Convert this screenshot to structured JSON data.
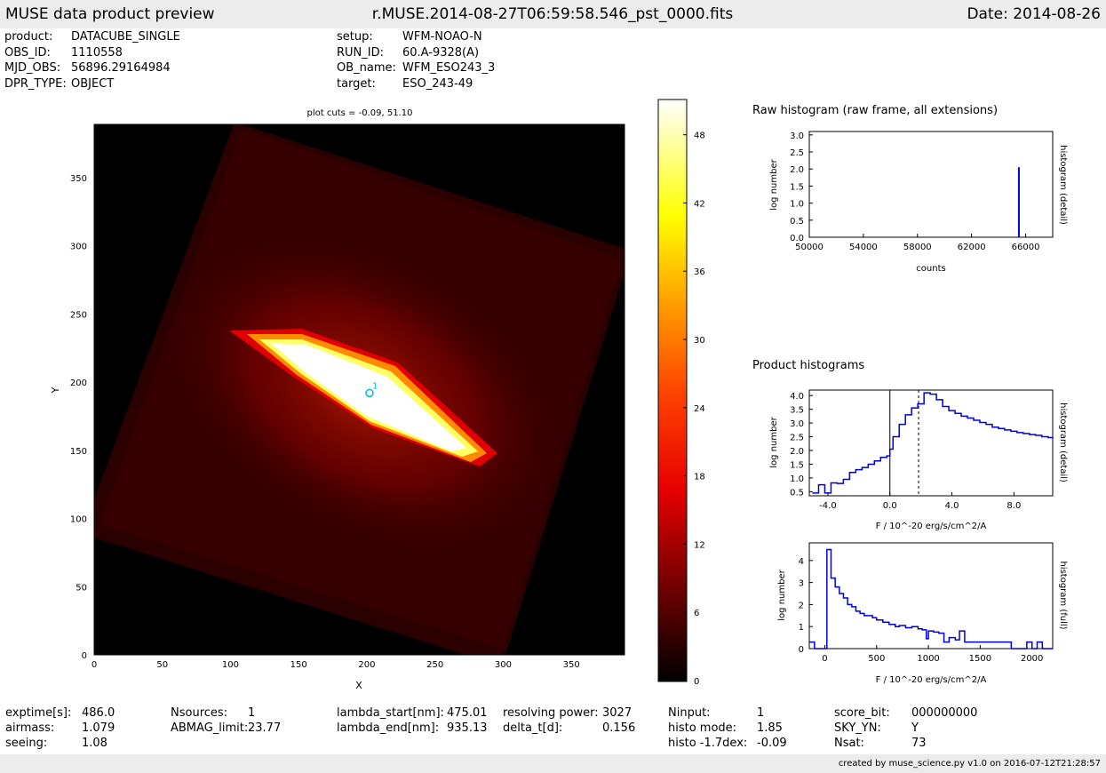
{
  "header": {
    "left": "MUSE data product preview",
    "center": "r.MUSE.2014-08-27T06:59:58.546_pst_0000.fits",
    "right": "Date: 2014-08-26"
  },
  "info": {
    "col1": [
      {
        "key": "product:",
        "val": "DATACUBE_SINGLE"
      },
      {
        "key": "OBS_ID:",
        "val": "1110558"
      },
      {
        "key": "MJD_OBS:",
        "val": "56896.29164984"
      },
      {
        "key": "DPR_TYPE:",
        "val": "OBJECT"
      }
    ],
    "col2": [
      {
        "key": "setup:",
        "val": "WFM-NOAO-N"
      },
      {
        "key": "RUN_ID:",
        "val": "60.A-9328(A)"
      },
      {
        "key": "OB_name:",
        "val": "WFM_ESO243_3"
      },
      {
        "key": "target:",
        "val": "ESO_243-49"
      }
    ]
  },
  "image_panel": {
    "title": "plot cuts = -0.09, 51.10",
    "xlabel": "X",
    "ylabel": "Y",
    "xticks": [
      "0",
      "50",
      "100",
      "150",
      "200",
      "250",
      "300",
      "350"
    ],
    "yticks": [
      "0",
      "50",
      "100",
      "150",
      "200",
      "250",
      "300",
      "350"
    ],
    "xlim": [
      0,
      389
    ],
    "ylim": [
      0,
      389
    ],
    "source_label": "1",
    "source_xy": [
      202,
      192
    ],
    "source_color": "#00bcd4",
    "colorbar_ticks": [
      "0",
      "6",
      "12",
      "18",
      "24",
      "30",
      "36",
      "42",
      "48"
    ],
    "colorbar_range": [
      -0.09,
      51.1
    ]
  },
  "raw_hist": {
    "title": "Raw histogram (raw frame, all extensions)",
    "xlabel": "counts",
    "ylabel": "log number",
    "right_label": "histogram (detail)",
    "xticks": [
      "50000",
      "54000",
      "58000",
      "62000",
      "66000"
    ],
    "yticks": [
      "0.0",
      "0.5",
      "1.0",
      "1.5",
      "2.0",
      "2.5",
      "3.0"
    ]
  },
  "product_title": "Product histograms",
  "detail_hist": {
    "xlabel": "F / 10^-20 erg/s/cm^2/A",
    "ylabel": "log number",
    "right_label": "histogram (detail)",
    "xticks": [
      "-4.0",
      "0.0",
      "4.0",
      "8.0"
    ],
    "yticks": [
      "0.5",
      "1.0",
      "1.5",
      "2.0",
      "2.5",
      "3.0",
      "3.5",
      "4.0"
    ]
  },
  "full_hist": {
    "xlabel": "F / 10^-20 erg/s/cm^2/A",
    "ylabel": "log number",
    "right_label": "histogram (full)",
    "xticks": [
      "0",
      "500",
      "1000",
      "1500",
      "2000"
    ],
    "yticks": [
      "0",
      "1",
      "2",
      "3",
      "4"
    ]
  },
  "stats": {
    "c1": [
      {
        "key": "exptime[s]:",
        "val": "486.0"
      },
      {
        "key": "airmass:",
        "val": "1.079"
      },
      {
        "key": "seeing:",
        "val": "1.08"
      }
    ],
    "c2": [
      {
        "key": "Nsources:",
        "val": "1"
      },
      {
        "key": "ABMAG_limit:",
        "val": "23.77"
      }
    ],
    "c3": [
      {
        "key": "lambda_start[nm]:",
        "val": "475.01"
      },
      {
        "key": "lambda_end[nm]:",
        "val": "935.13"
      }
    ],
    "c4": [
      {
        "key": "resolving power:",
        "val": "3027"
      },
      {
        "key": "delta_t[d]:",
        "val": "0.156"
      }
    ],
    "c5": [
      {
        "key": "Ninput:",
        "val": "1"
      },
      {
        "key": "histo mode:",
        "val": "1.85"
      },
      {
        "key": "histo -1.7dex:",
        "val": "-0.09"
      }
    ],
    "c6": [
      {
        "key": "score_bit:",
        "val": "000000000"
      },
      {
        "key": "SKY_YN:",
        "val": "Y"
      },
      {
        "key": "Nsat:",
        "val": "73"
      }
    ]
  },
  "footer": "created by muse_science.py v1.0 on 2016-07-12T21:28:57",
  "colors": {
    "hist_line": "#0000dd",
    "bar_bg": "#ececec"
  },
  "chart_data": [
    {
      "type": "heatmap",
      "title": "plot cuts = -0.09, 51.10",
      "xlabel": "X",
      "ylabel": "Y",
      "xlim": [
        0,
        389
      ],
      "ylim": [
        0,
        389
      ],
      "colorbar": {
        "min": -0.09,
        "max": 51.1,
        "ticks": [
          0,
          6,
          12,
          18,
          24,
          30,
          36,
          42,
          48
        ]
      },
      "colormap": "hot",
      "annotations": [
        {
          "label": "1",
          "x": 202,
          "y": 192
        }
      ]
    },
    {
      "type": "bar",
      "title": "Raw histogram (raw frame, all extensions)",
      "xlabel": "counts",
      "ylabel": "log number",
      "xlim": [
        50000,
        68000
      ],
      "ylim": [
        0,
        3.1
      ],
      "x": [
        65500
      ],
      "values": [
        2.05
      ]
    },
    {
      "type": "line",
      "xlabel": "F / 10^-20 erg/s/cm^2/A",
      "ylabel": "log number",
      "xlim": [
        -5.2,
        10.5
      ],
      "ylim": [
        0.35,
        4.2
      ],
      "vlines": [
        0.0,
        1.85
      ],
      "x": [
        -5.0,
        -4.6,
        -4.2,
        -3.8,
        -3.4,
        -3.0,
        -2.6,
        -2.2,
        -1.8,
        -1.4,
        -1.0,
        -0.6,
        -0.2,
        0.0,
        0.2,
        0.6,
        1.0,
        1.4,
        1.8,
        2.2,
        2.6,
        3.0,
        3.4,
        3.8,
        4.2,
        4.6,
        5.0,
        5.4,
        5.8,
        6.2,
        6.6,
        7.0,
        7.4,
        7.8,
        8.2,
        8.6,
        9.0,
        9.4,
        9.8,
        10.2
      ],
      "values": [
        0.45,
        0.75,
        0.45,
        0.82,
        0.8,
        0.95,
        1.2,
        1.3,
        1.38,
        1.5,
        1.62,
        1.75,
        1.8,
        2.05,
        2.5,
        2.95,
        3.3,
        3.55,
        3.7,
        4.1,
        4.05,
        3.85,
        3.6,
        3.45,
        3.35,
        3.25,
        3.18,
        3.1,
        3.02,
        2.95,
        2.85,
        2.8,
        2.75,
        2.7,
        2.65,
        2.62,
        2.58,
        2.55,
        2.5,
        2.47
      ]
    },
    {
      "type": "line",
      "xlabel": "F / 10^-20 erg/s/cm^2/A",
      "ylabel": "log number",
      "xlim": [
        -150,
        2200
      ],
      "ylim": [
        0,
        4.8
      ],
      "x": [
        -150,
        -100,
        -60,
        -20,
        20,
        60,
        100,
        140,
        180,
        220,
        260,
        300,
        340,
        380,
        420,
        460,
        500,
        560,
        620,
        680,
        720,
        780,
        840,
        900,
        940,
        980,
        1000,
        1050,
        1100,
        1150,
        1200,
        1260,
        1300,
        1350,
        1400,
        1500,
        1600,
        1700,
        1800,
        1900,
        1950,
        2000,
        2050,
        2100,
        2150
      ],
      "values": [
        0.3,
        0,
        0,
        0,
        4.5,
        3.2,
        2.8,
        2.5,
        2.3,
        2.0,
        1.9,
        1.7,
        1.6,
        1.5,
        1.5,
        1.4,
        1.3,
        1.2,
        1.1,
        1.0,
        1.05,
        0.95,
        1.0,
        0.9,
        0.85,
        0.45,
        0.8,
        0.75,
        0.7,
        0.3,
        0.5,
        0.4,
        0.8,
        0.3,
        0.3,
        0.3,
        0.3,
        0.3,
        0,
        0,
        0.3,
        0,
        0.3,
        0,
        0
      ]
    }
  ]
}
